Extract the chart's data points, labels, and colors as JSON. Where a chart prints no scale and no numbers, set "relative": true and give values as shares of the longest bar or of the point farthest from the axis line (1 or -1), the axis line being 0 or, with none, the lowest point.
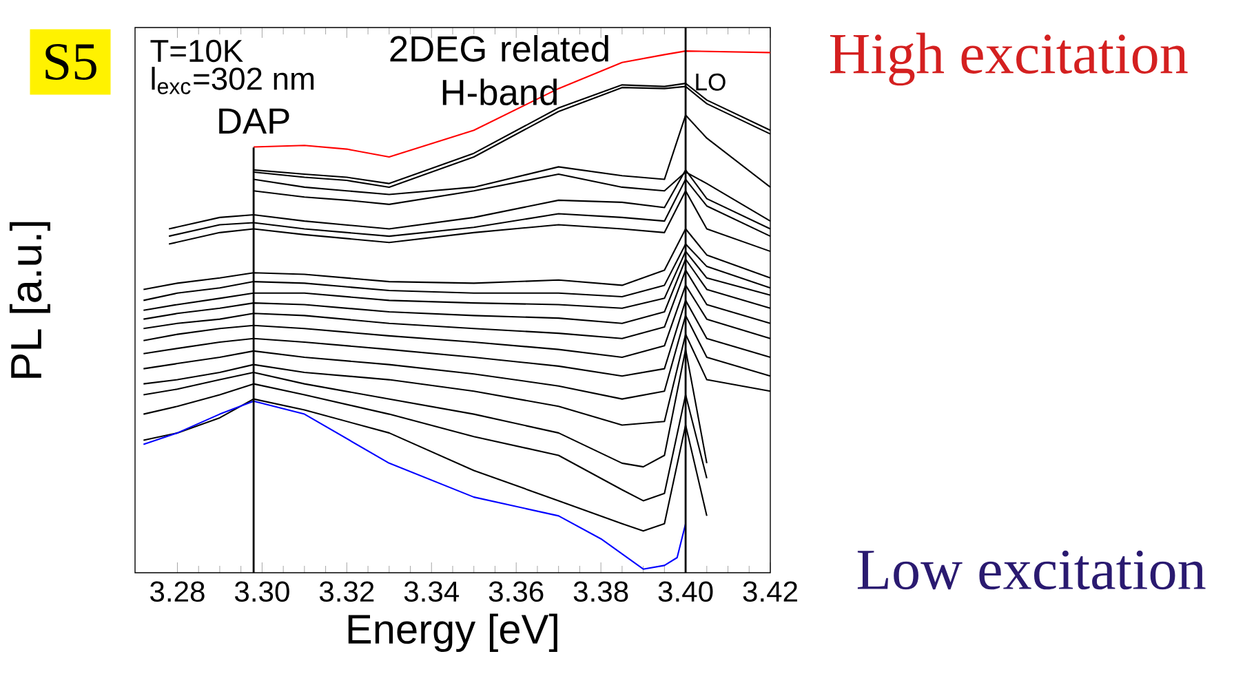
{
  "chart_data": {
    "type": "line",
    "relative": true,
    "xlabel": "Energy [eV]",
    "ylabel": "PL [a.u.]",
    "xlim": [
      3.27,
      3.42
    ],
    "xticks": [
      {
        "value": 3.28,
        "label": "3.28"
      },
      {
        "value": 3.3,
        "label": "3.30"
      },
      {
        "value": 3.32,
        "label": "3.32"
      },
      {
        "value": 3.34,
        "label": "3.34"
      },
      {
        "value": 3.36,
        "label": "3.36"
      },
      {
        "value": 3.38,
        "label": "3.38"
      },
      {
        "value": 3.4,
        "label": "3.40"
      },
      {
        "value": 3.42,
        "label": "3.42"
      }
    ],
    "ref_lines": [
      {
        "axis": "x",
        "value": 3.298,
        "label": "DAP"
      },
      {
        "axis": "x",
        "value": 3.4,
        "label": "LO"
      }
    ],
    "annotations": [
      "S5",
      "T=10K",
      "l$_{exc}$=302 nm",
      "2DEG related H-band",
      "High excitation",
      "Low excitation"
    ],
    "series": [
      {
        "color": "#ff0000",
        "x": [
          3.298,
          3.31,
          3.32,
          3.33,
          3.35,
          3.37,
          3.385,
          3.395,
          3.4,
          3.42
        ],
        "values": [
          0.816,
          0.819,
          0.812,
          0.797,
          0.848,
          0.928,
          0.978,
          0.993,
          1.0,
          0.997
        ]
      },
      {
        "color": "#000000",
        "x": [
          3.298,
          3.31,
          3.32,
          3.33,
          3.35,
          3.37,
          3.385,
          3.395,
          3.4,
          3.405,
          3.42
        ],
        "values": [
          0.772,
          0.764,
          0.758,
          0.746,
          0.804,
          0.891,
          0.935,
          0.932,
          0.938,
          0.906,
          0.848
        ]
      },
      {
        "color": "#000000",
        "x": [
          3.298,
          3.31,
          3.32,
          3.33,
          3.35,
          3.37,
          3.385,
          3.395,
          3.4,
          3.405,
          3.42
        ],
        "values": [
          0.768,
          0.758,
          0.752,
          0.739,
          0.797,
          0.884,
          0.93,
          0.928,
          0.932,
          0.899,
          0.841
        ]
      },
      {
        "color": "#000000",
        "x": [
          3.298,
          3.31,
          3.32,
          3.33,
          3.35,
          3.37,
          3.385,
          3.395,
          3.4,
          3.405,
          3.42
        ],
        "values": [
          0.754,
          0.739,
          0.732,
          0.725,
          0.739,
          0.778,
          0.761,
          0.754,
          0.877,
          0.833,
          0.739
        ]
      },
      {
        "color": "#000000",
        "x": [
          3.298,
          3.31,
          3.32,
          3.33,
          3.35,
          3.37,
          3.385,
          3.395,
          3.4,
          3.405,
          3.42
        ],
        "values": [
          0.732,
          0.72,
          0.714,
          0.706,
          0.732,
          0.764,
          0.739,
          0.732,
          0.768,
          0.746,
          0.674
        ]
      },
      {
        "color": "#000000",
        "x": [
          3.278,
          3.29,
          3.298,
          3.31,
          3.33,
          3.35,
          3.37,
          3.385,
          3.395,
          3.4,
          3.405,
          3.42
        ],
        "values": [
          0.659,
          0.681,
          0.686,
          0.674,
          0.659,
          0.681,
          0.714,
          0.71,
          0.7,
          0.772,
          0.717,
          0.659
        ]
      },
      {
        "color": "#000000",
        "x": [
          3.278,
          3.29,
          3.298,
          3.31,
          3.33,
          3.35,
          3.37,
          3.385,
          3.395,
          3.4,
          3.405,
          3.42
        ],
        "values": [
          0.645,
          0.667,
          0.671,
          0.659,
          0.645,
          0.662,
          0.688,
          0.681,
          0.674,
          0.754,
          0.703,
          0.645
        ]
      },
      {
        "color": "#000000",
        "x": [
          3.278,
          3.29,
          3.298,
          3.31,
          3.33,
          3.35,
          3.37,
          3.385,
          3.395,
          3.4,
          3.405,
          3.42
        ],
        "values": [
          0.63,
          0.652,
          0.659,
          0.648,
          0.633,
          0.652,
          0.667,
          0.659,
          0.652,
          0.732,
          0.659,
          0.616
        ]
      },
      {
        "color": "#000000",
        "x": [
          3.272,
          3.28,
          3.29,
          3.298,
          3.31,
          3.33,
          3.35,
          3.37,
          3.385,
          3.395,
          3.4,
          3.405,
          3.42
        ],
        "values": [
          0.543,
          0.555,
          0.565,
          0.575,
          0.572,
          0.558,
          0.555,
          0.561,
          0.551,
          0.58,
          0.659,
          0.609,
          0.565
        ]
      },
      {
        "color": "#000000",
        "x": [
          3.272,
          3.28,
          3.29,
          3.298,
          3.31,
          3.33,
          3.35,
          3.37,
          3.385,
          3.395,
          3.4,
          3.405,
          3.42
        ],
        "values": [
          0.522,
          0.536,
          0.546,
          0.558,
          0.555,
          0.541,
          0.536,
          0.536,
          0.529,
          0.551,
          0.63,
          0.587,
          0.546
        ]
      },
      {
        "color": "#000000",
        "x": [
          3.272,
          3.28,
          3.29,
          3.298,
          3.31,
          3.33,
          3.35,
          3.37,
          3.385,
          3.395,
          3.4,
          3.405,
          3.42
        ],
        "values": [
          0.503,
          0.514,
          0.526,
          0.536,
          0.536,
          0.522,
          0.517,
          0.514,
          0.507,
          0.526,
          0.616,
          0.565,
          0.532
        ]
      },
      {
        "color": "#000000",
        "x": [
          3.272,
          3.28,
          3.29,
          3.298,
          3.31,
          3.33,
          3.35,
          3.37,
          3.385,
          3.395,
          3.4,
          3.405,
          3.42
        ],
        "values": [
          0.486,
          0.497,
          0.507,
          0.517,
          0.514,
          0.5,
          0.493,
          0.488,
          0.478,
          0.5,
          0.601,
          0.543,
          0.507
        ]
      },
      {
        "color": "#000000",
        "x": [
          3.272,
          3.28,
          3.29,
          3.298,
          3.31,
          3.33,
          3.35,
          3.37,
          3.385,
          3.395,
          3.4,
          3.405,
          3.42
        ],
        "values": [
          0.468,
          0.478,
          0.486,
          0.497,
          0.493,
          0.478,
          0.468,
          0.459,
          0.449,
          0.471,
          0.58,
          0.514,
          0.478
        ]
      },
      {
        "color": "#000000",
        "x": [
          3.272,
          3.28,
          3.29,
          3.298,
          3.31,
          3.33,
          3.35,
          3.37,
          3.385,
          3.395,
          3.4,
          3.405,
          3.42
        ],
        "values": [
          0.445,
          0.457,
          0.468,
          0.474,
          0.468,
          0.454,
          0.442,
          0.428,
          0.413,
          0.435,
          0.551,
          0.486,
          0.449
        ]
      },
      {
        "color": "#000000",
        "x": [
          3.272,
          3.28,
          3.29,
          3.298,
          3.31,
          3.33,
          3.35,
          3.37,
          3.385,
          3.395,
          3.4,
          3.405,
          3.42
        ],
        "values": [
          0.42,
          0.43,
          0.442,
          0.449,
          0.442,
          0.428,
          0.413,
          0.396,
          0.377,
          0.391,
          0.522,
          0.449,
          0.413
        ]
      },
      {
        "color": "#000000",
        "x": [
          3.272,
          3.28,
          3.29,
          3.298,
          3.31,
          3.33,
          3.35,
          3.37,
          3.385,
          3.395,
          3.4,
          3.405,
          3.42
        ],
        "values": [
          0.391,
          0.401,
          0.413,
          0.425,
          0.413,
          0.399,
          0.381,
          0.358,
          0.333,
          0.348,
          0.493,
          0.413,
          0.377
        ]
      },
      {
        "color": "#000000",
        "x": [
          3.272,
          3.28,
          3.29,
          3.298,
          3.31,
          3.33,
          3.35,
          3.37,
          3.385,
          3.395,
          3.4,
          3.405,
          3.42
        ],
        "values": [
          0.362,
          0.37,
          0.384,
          0.399,
          0.384,
          0.37,
          0.348,
          0.319,
          0.283,
          0.29,
          0.457,
          0.37,
          0.348
        ]
      },
      {
        "color": "#000000",
        "x": [
          3.272,
          3.28,
          3.29,
          3.298,
          3.31,
          3.33,
          3.35,
          3.37,
          3.385,
          3.39,
          3.395,
          3.4,
          3.405
        ],
        "values": [
          0.341,
          0.352,
          0.37,
          0.384,
          0.362,
          0.333,
          0.304,
          0.268,
          0.21,
          0.203,
          0.225,
          0.428,
          0.21
        ]
      },
      {
        "color": "#000000",
        "x": [
          3.272,
          3.28,
          3.29,
          3.298,
          3.31,
          3.33,
          3.35,
          3.37,
          3.385,
          3.39,
          3.395,
          3.4,
          3.405
        ],
        "values": [
          0.304,
          0.319,
          0.341,
          0.362,
          0.341,
          0.304,
          0.261,
          0.225,
          0.159,
          0.138,
          0.152,
          0.341,
          0.181
        ]
      },
      {
        "color": "#000000",
        "x": [
          3.272,
          3.28,
          3.29,
          3.298,
          3.31,
          3.33,
          3.35,
          3.37,
          3.385,
          3.39,
          3.395,
          3.4,
          3.405
        ],
        "values": [
          0.254,
          0.268,
          0.297,
          0.333,
          0.312,
          0.268,
          0.196,
          0.138,
          0.094,
          0.08,
          0.094,
          0.283,
          0.109
        ]
      },
      {
        "color": "#0000ff",
        "x": [
          3.272,
          3.28,
          3.29,
          3.298,
          3.31,
          3.33,
          3.35,
          3.37,
          3.38,
          3.39,
          3.395,
          3.398,
          3.4
        ],
        "values": [
          0.246,
          0.268,
          0.304,
          0.329,
          0.304,
          0.21,
          0.145,
          0.109,
          0.065,
          0.007,
          0.014,
          0.029,
          0.094
        ]
      }
    ]
  }
}
